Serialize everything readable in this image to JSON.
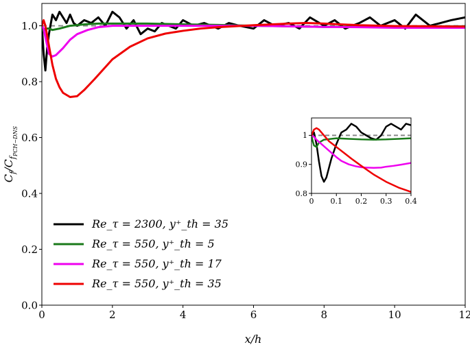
{
  "chart_data": {
    "type": "line",
    "xlabel": "x/h",
    "ylabel": "C_f / C_{f_{PCH-DNS}}",
    "xlim": [
      0,
      12
    ],
    "ylim": [
      0.0,
      1.08
    ],
    "xticks": [
      "0",
      "2",
      "4",
      "6",
      "8",
      "10",
      "12"
    ],
    "yticks": [
      "0.0",
      "0.2",
      "0.4",
      "0.6",
      "0.8",
      "1.0"
    ],
    "reference_line": {
      "y": 1.0,
      "style": "dashed",
      "color": "#888888"
    },
    "legend_position": "lower-left",
    "series": [
      {
        "name": "Re_τ = 2300, y⁺_th = 35",
        "color": "#000000",
        "x": [
          0.0,
          0.02,
          0.05,
          0.1,
          0.15,
          0.2,
          0.3,
          0.4,
          0.5,
          0.6,
          0.7,
          0.8,
          0.9,
          1.0,
          1.2,
          1.4,
          1.6,
          1.8,
          2.0,
          2.2,
          2.4,
          2.6,
          2.8,
          3.0,
          3.2,
          3.4,
          3.6,
          3.8,
          4.0,
          4.3,
          4.6,
          5.0,
          5.3,
          5.6,
          6.0,
          6.3,
          6.6,
          7.0,
          7.3,
          7.6,
          8.0,
          8.3,
          8.6,
          9.0,
          9.3,
          9.6,
          10.0,
          10.3,
          10.6,
          11.0,
          11.3,
          11.6,
          12.0
        ],
        "values": [
          1.0,
          0.96,
          0.9,
          0.84,
          0.92,
          0.97,
          1.04,
          1.02,
          1.05,
          1.03,
          1.01,
          1.04,
          1.01,
          1.0,
          1.02,
          1.01,
          1.03,
          1.0,
          1.05,
          1.03,
          0.99,
          1.02,
          0.97,
          0.99,
          0.98,
          1.01,
          1.0,
          0.99,
          1.02,
          1.0,
          1.01,
          0.99,
          1.01,
          1.0,
          0.99,
          1.02,
          1.0,
          1.01,
          0.99,
          1.03,
          1.0,
          1.02,
          0.99,
          1.01,
          1.03,
          1.0,
          1.02,
          0.99,
          1.04,
          1.0,
          1.01,
          1.02,
          1.03
        ]
      },
      {
        "name": "Re_τ = 550, y⁺_th = 5",
        "color": "#1a7a1a",
        "x": [
          0.0,
          0.05,
          0.1,
          0.2,
          0.3,
          0.5,
          0.8,
          1.2,
          1.6,
          2.0,
          3.0,
          4.0,
          5.0,
          6.0,
          7.0,
          8.0,
          9.0,
          10.0,
          11.0,
          12.0
        ],
        "values": [
          1.0,
          0.98,
          0.99,
          0.99,
          0.985,
          0.99,
          1.0,
          1.005,
          1.008,
          1.008,
          1.008,
          1.005,
          1.003,
          1.0,
          0.998,
          0.996,
          0.997,
          0.998,
          0.998,
          0.998
        ]
      },
      {
        "name": "Re_τ = 550, y⁺_th = 17",
        "color": "#ee00ee",
        "x": [
          0.0,
          0.05,
          0.1,
          0.2,
          0.3,
          0.4,
          0.6,
          0.8,
          1.0,
          1.3,
          1.6,
          2.0,
          2.5,
          3.0,
          4.0,
          5.0,
          6.0,
          7.0,
          8.0,
          9.0,
          10.0,
          11.0,
          12.0
        ],
        "values": [
          1.0,
          0.99,
          0.96,
          0.9,
          0.89,
          0.895,
          0.92,
          0.95,
          0.97,
          0.985,
          0.995,
          1.0,
          1.0,
          1.0,
          1.0,
          1.0,
          1.0,
          0.998,
          0.996,
          0.995,
          0.993,
          0.993,
          0.993
        ]
      },
      {
        "name": "Re_τ = 550, y⁺_th = 35",
        "color": "#ee0000",
        "x": [
          0.0,
          0.05,
          0.1,
          0.2,
          0.3,
          0.4,
          0.5,
          0.6,
          0.8,
          1.0,
          1.2,
          1.5,
          2.0,
          2.5,
          3.0,
          3.5,
          4.0,
          4.5,
          5.0,
          6.0,
          7.0,
          7.5,
          8.0,
          9.0,
          10.0,
          11.0,
          12.0
        ],
        "values": [
          1.0,
          1.02,
          1.0,
          0.93,
          0.86,
          0.81,
          0.78,
          0.76,
          0.745,
          0.748,
          0.77,
          0.81,
          0.88,
          0.925,
          0.955,
          0.972,
          0.982,
          0.99,
          0.995,
          1.002,
          1.008,
          1.01,
          1.008,
          1.002,
          0.999,
          0.998,
          0.997
        ]
      }
    ],
    "inset": {
      "xlim": [
        0,
        0.4
      ],
      "ylim": [
        0.8,
        1.06
      ],
      "xticks": [
        "0",
        "0.1",
        "0.2",
        "0.3",
        "0.4"
      ],
      "yticks": [
        "0.8",
        "0.9",
        "1"
      ],
      "series": [
        {
          "color": "#000000",
          "x": [
            0.0,
            0.01,
            0.02,
            0.03,
            0.04,
            0.05,
            0.06,
            0.08,
            0.1,
            0.12,
            0.14,
            0.16,
            0.18,
            0.2,
            0.22,
            0.24,
            0.26,
            0.28,
            0.3,
            0.32,
            0.34,
            0.36,
            0.38,
            0.4
          ],
          "values": [
            1.0,
            1.01,
            0.97,
            0.91,
            0.86,
            0.84,
            0.855,
            0.92,
            0.97,
            1.01,
            1.02,
            1.04,
            1.03,
            1.01,
            1.0,
            0.99,
            0.985,
            1.0,
            1.03,
            1.04,
            1.03,
            1.02,
            1.04,
            1.035
          ]
        },
        {
          "color": "#1a7a1a",
          "x": [
            0.0,
            0.005,
            0.01,
            0.02,
            0.03,
            0.05,
            0.1,
            0.15,
            0.2,
            0.25,
            0.3,
            0.35,
            0.4
          ],
          "values": [
            1.0,
            0.98,
            0.965,
            0.96,
            0.975,
            0.985,
            0.99,
            0.988,
            0.986,
            0.985,
            0.986,
            0.988,
            0.99
          ]
        },
        {
          "color": "#ee00ee",
          "x": [
            0.0,
            0.01,
            0.02,
            0.04,
            0.06,
            0.08,
            0.1,
            0.12,
            0.15,
            0.18,
            0.2,
            0.22,
            0.25,
            0.28,
            0.3,
            0.33,
            0.36,
            0.4
          ],
          "values": [
            1.0,
            0.995,
            0.985,
            0.97,
            0.955,
            0.94,
            0.925,
            0.912,
            0.9,
            0.893,
            0.89,
            0.889,
            0.888,
            0.889,
            0.892,
            0.895,
            0.899,
            0.905
          ]
        },
        {
          "color": "#ee0000",
          "x": [
            0.0,
            0.01,
            0.02,
            0.03,
            0.05,
            0.07,
            0.1,
            0.13,
            0.16,
            0.2,
            0.25,
            0.3,
            0.35,
            0.4
          ],
          "values": [
            1.0,
            1.02,
            1.025,
            1.02,
            1.0,
            0.98,
            0.96,
            0.94,
            0.92,
            0.895,
            0.865,
            0.84,
            0.82,
            0.805
          ]
        }
      ]
    }
  }
}
